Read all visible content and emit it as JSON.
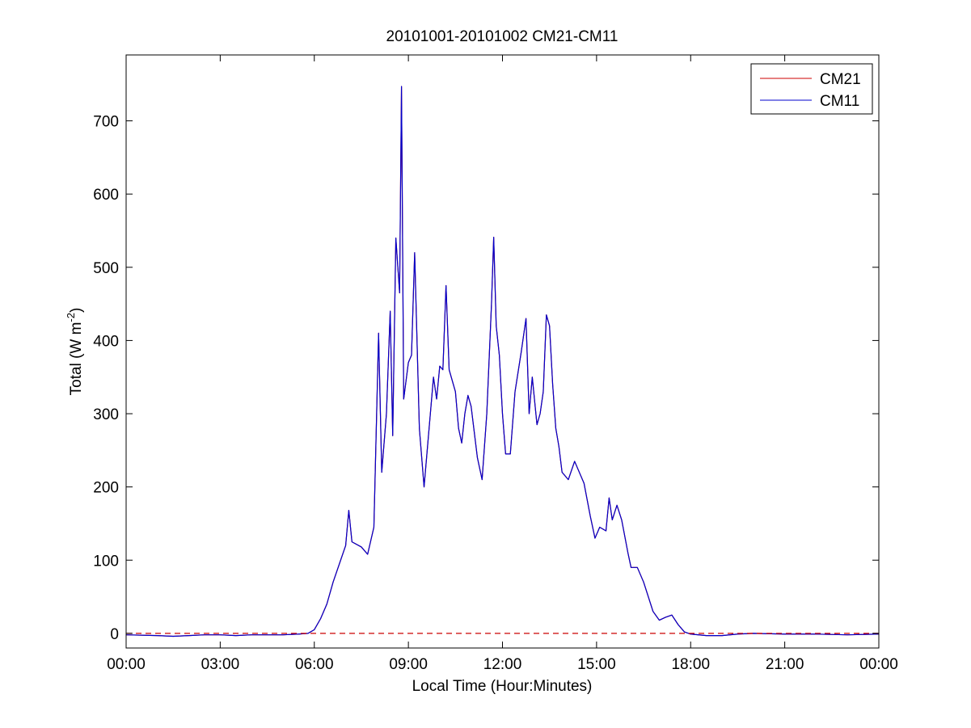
{
  "chart_data": {
    "type": "line",
    "title": "20101001-20101002 CM21-CM11",
    "xlabel": "Local Time (Hour:Minutes)",
    "ylabel": {
      "main": "Total (W m",
      "superscript": "-2",
      "close": ")"
    },
    "x_unit": "hours",
    "xlim": [
      0,
      24
    ],
    "ylim": [
      -20,
      790
    ],
    "x_ticks": [
      {
        "value": 0,
        "label": "00:00"
      },
      {
        "value": 3,
        "label": "03:00"
      },
      {
        "value": 6,
        "label": "06:00"
      },
      {
        "value": 9,
        "label": "09:00"
      },
      {
        "value": 12,
        "label": "12:00"
      },
      {
        "value": 15,
        "label": "15:00"
      },
      {
        "value": 18,
        "label": "18:00"
      },
      {
        "value": 21,
        "label": "21:00"
      },
      {
        "value": 24,
        "label": "00:00"
      }
    ],
    "y_ticks": [
      0,
      100,
      200,
      300,
      400,
      500,
      600,
      700
    ],
    "grid": false,
    "legend": {
      "position": "top-right"
    },
    "reference_line": {
      "y": 0,
      "style": "dashed",
      "color": "#cc0000"
    },
    "series": [
      {
        "name": "CM21",
        "color": "#cc0000",
        "points": [
          [
            0,
            -2
          ],
          [
            1,
            -3
          ],
          [
            1.5,
            -4
          ],
          [
            2,
            -3
          ],
          [
            2.5,
            -2
          ],
          [
            3,
            -2
          ],
          [
            3.5,
            -3
          ],
          [
            4,
            -2
          ],
          [
            4.5,
            -2
          ],
          [
            5,
            -2
          ],
          [
            5.5,
            -1
          ],
          [
            5.8,
            0
          ],
          [
            6,
            5
          ],
          [
            6.2,
            20
          ],
          [
            6.4,
            40
          ],
          [
            6.6,
            70
          ],
          [
            6.8,
            95
          ],
          [
            7,
            120
          ],
          [
            7.1,
            168
          ],
          [
            7.2,
            125
          ],
          [
            7.5,
            118
          ],
          [
            7.7,
            108
          ],
          [
            7.9,
            145
          ],
          [
            8.05,
            410
          ],
          [
            8.15,
            220
          ],
          [
            8.3,
            300
          ],
          [
            8.42,
            440
          ],
          [
            8.5,
            270
          ],
          [
            8.6,
            540
          ],
          [
            8.72,
            465
          ],
          [
            8.78,
            747
          ],
          [
            8.85,
            320
          ],
          [
            9,
            370
          ],
          [
            9.1,
            380
          ],
          [
            9.2,
            520
          ],
          [
            9.35,
            280
          ],
          [
            9.5,
            200
          ],
          [
            9.7,
            300
          ],
          [
            9.8,
            350
          ],
          [
            9.9,
            320
          ],
          [
            10,
            365
          ],
          [
            10.1,
            360
          ],
          [
            10.2,
            475
          ],
          [
            10.3,
            360
          ],
          [
            10.5,
            330
          ],
          [
            10.6,
            280
          ],
          [
            10.7,
            260
          ],
          [
            10.8,
            300
          ],
          [
            10.9,
            325
          ],
          [
            11,
            310
          ],
          [
            11.2,
            240
          ],
          [
            11.35,
            210
          ],
          [
            11.5,
            300
          ],
          [
            11.65,
            450
          ],
          [
            11.72,
            541
          ],
          [
            11.8,
            420
          ],
          [
            11.9,
            380
          ],
          [
            12,
            300
          ],
          [
            12.1,
            245
          ],
          [
            12.25,
            245
          ],
          [
            12.4,
            330
          ],
          [
            12.6,
            385
          ],
          [
            12.75,
            430
          ],
          [
            12.85,
            300
          ],
          [
            12.95,
            350
          ],
          [
            13.1,
            285
          ],
          [
            13.2,
            300
          ],
          [
            13.3,
            330
          ],
          [
            13.4,
            435
          ],
          [
            13.5,
            420
          ],
          [
            13.6,
            340
          ],
          [
            13.7,
            280
          ],
          [
            13.8,
            255
          ],
          [
            13.9,
            220
          ],
          [
            14.1,
            210
          ],
          [
            14.3,
            235
          ],
          [
            14.5,
            215
          ],
          [
            14.6,
            205
          ],
          [
            14.8,
            160
          ],
          [
            14.95,
            130
          ],
          [
            15.1,
            145
          ],
          [
            15.3,
            140
          ],
          [
            15.4,
            185
          ],
          [
            15.5,
            155
          ],
          [
            15.65,
            175
          ],
          [
            15.8,
            155
          ],
          [
            16,
            110
          ],
          [
            16.1,
            90
          ],
          [
            16.3,
            90
          ],
          [
            16.5,
            70
          ],
          [
            16.8,
            30
          ],
          [
            17,
            18
          ],
          [
            17.2,
            22
          ],
          [
            17.4,
            25
          ],
          [
            17.6,
            12
          ],
          [
            17.8,
            2
          ],
          [
            18,
            -1
          ],
          [
            18.5,
            -3
          ],
          [
            19,
            -3
          ],
          [
            19.5,
            -1
          ],
          [
            20,
            0
          ],
          [
            21,
            -1
          ],
          [
            22,
            -1
          ],
          [
            23,
            -2
          ],
          [
            24,
            -1
          ]
        ]
      },
      {
        "name": "CM11",
        "color": "#0000cc",
        "points": [
          [
            0,
            -2
          ],
          [
            1,
            -3
          ],
          [
            1.5,
            -4
          ],
          [
            2,
            -3
          ],
          [
            2.5,
            -2
          ],
          [
            3,
            -2
          ],
          [
            3.5,
            -3
          ],
          [
            4,
            -2
          ],
          [
            4.5,
            -2
          ],
          [
            5,
            -2
          ],
          [
            5.5,
            -1
          ],
          [
            5.8,
            0
          ],
          [
            6,
            5
          ],
          [
            6.2,
            20
          ],
          [
            6.4,
            40
          ],
          [
            6.6,
            70
          ],
          [
            6.8,
            95
          ],
          [
            7,
            120
          ],
          [
            7.1,
            168
          ],
          [
            7.2,
            125
          ],
          [
            7.5,
            118
          ],
          [
            7.7,
            108
          ],
          [
            7.9,
            145
          ],
          [
            8.05,
            410
          ],
          [
            8.15,
            220
          ],
          [
            8.3,
            300
          ],
          [
            8.42,
            440
          ],
          [
            8.5,
            270
          ],
          [
            8.6,
            540
          ],
          [
            8.72,
            465
          ],
          [
            8.78,
            747
          ],
          [
            8.85,
            320
          ],
          [
            9,
            370
          ],
          [
            9.1,
            380
          ],
          [
            9.2,
            520
          ],
          [
            9.35,
            280
          ],
          [
            9.5,
            200
          ],
          [
            9.7,
            300
          ],
          [
            9.8,
            350
          ],
          [
            9.9,
            320
          ],
          [
            10,
            365
          ],
          [
            10.1,
            360
          ],
          [
            10.2,
            475
          ],
          [
            10.3,
            360
          ],
          [
            10.5,
            330
          ],
          [
            10.6,
            280
          ],
          [
            10.7,
            260
          ],
          [
            10.8,
            300
          ],
          [
            10.9,
            325
          ],
          [
            11,
            310
          ],
          [
            11.2,
            240
          ],
          [
            11.35,
            210
          ],
          [
            11.5,
            300
          ],
          [
            11.65,
            450
          ],
          [
            11.72,
            541
          ],
          [
            11.8,
            420
          ],
          [
            11.9,
            380
          ],
          [
            12,
            300
          ],
          [
            12.1,
            245
          ],
          [
            12.25,
            245
          ],
          [
            12.4,
            330
          ],
          [
            12.6,
            385
          ],
          [
            12.75,
            430
          ],
          [
            12.85,
            300
          ],
          [
            12.95,
            350
          ],
          [
            13.1,
            285
          ],
          [
            13.2,
            300
          ],
          [
            13.3,
            330
          ],
          [
            13.4,
            435
          ],
          [
            13.5,
            420
          ],
          [
            13.6,
            340
          ],
          [
            13.7,
            280
          ],
          [
            13.8,
            255
          ],
          [
            13.9,
            220
          ],
          [
            14.1,
            210
          ],
          [
            14.3,
            235
          ],
          [
            14.5,
            215
          ],
          [
            14.6,
            205
          ],
          [
            14.8,
            160
          ],
          [
            14.95,
            130
          ],
          [
            15.1,
            145
          ],
          [
            15.3,
            140
          ],
          [
            15.4,
            185
          ],
          [
            15.5,
            155
          ],
          [
            15.65,
            175
          ],
          [
            15.8,
            155
          ],
          [
            16,
            110
          ],
          [
            16.1,
            90
          ],
          [
            16.3,
            90
          ],
          [
            16.5,
            70
          ],
          [
            16.8,
            30
          ],
          [
            17,
            18
          ],
          [
            17.2,
            22
          ],
          [
            17.4,
            25
          ],
          [
            17.6,
            12
          ],
          [
            17.8,
            2
          ],
          [
            18,
            -1
          ],
          [
            18.5,
            -3
          ],
          [
            19,
            -3
          ],
          [
            19.5,
            -1
          ],
          [
            20,
            0
          ],
          [
            21,
            -1
          ],
          [
            22,
            -1
          ],
          [
            23,
            -2
          ],
          [
            24,
            -1
          ]
        ]
      }
    ]
  }
}
